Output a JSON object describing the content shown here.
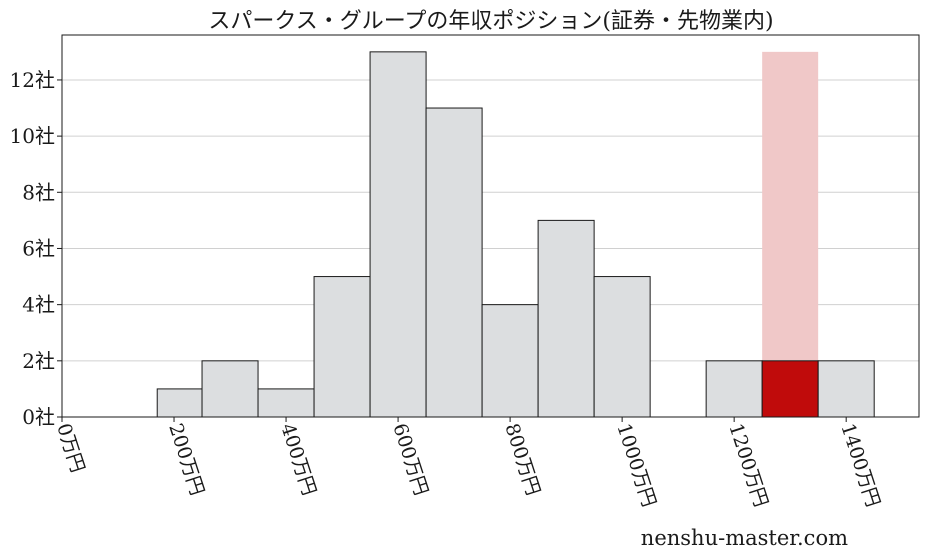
{
  "chart_data": {
    "type": "bar",
    "title": "スパークス・グループの年収ポジション(証券・先物業内)",
    "xlabel": "",
    "ylabel": "",
    "bin_edges_man_yen": [
      0,
      50,
      100,
      150,
      200,
      250,
      300,
      350,
      400,
      450,
      500,
      550,
      600,
      650,
      700,
      750,
      800,
      850,
      900,
      950,
      1000,
      1050,
      1100,
      1150,
      1200,
      1250,
      1300,
      1350,
      1400,
      1450
    ],
    "bars": [
      {
        "x_start": 170,
        "x_end": 250,
        "value": 1
      },
      {
        "x_start": 250,
        "x_end": 350,
        "value": 2
      },
      {
        "x_start": 350,
        "x_end": 450,
        "value": 1
      },
      {
        "x_start": 450,
        "x_end": 550,
        "value": 5
      },
      {
        "x_start": 550,
        "x_end": 650,
        "value": 13
      },
      {
        "x_start": 650,
        "x_end": 750,
        "value": 11
      },
      {
        "x_start": 750,
        "x_end": 850,
        "value": 4
      },
      {
        "x_start": 850,
        "x_end": 950,
        "value": 7
      },
      {
        "x_start": 950,
        "x_end": 1050,
        "value": 5
      },
      {
        "x_start": 1150,
        "x_end": 1250,
        "value": 2
      },
      {
        "x_start": 1250,
        "x_end": 1350,
        "value": 2,
        "highlight": true
      },
      {
        "x_start": 1350,
        "x_end": 1450,
        "value": 2
      }
    ],
    "highlight_band": {
      "x_start": 1250,
      "x_end": 1350,
      "value": 13
    },
    "xlim": [
      0,
      1530
    ],
    "ylim": [
      0,
      13.6
    ],
    "x_ticks": [
      {
        "value": 0,
        "label": "0万円"
      },
      {
        "value": 200,
        "label": "200万円"
      },
      {
        "value": 400,
        "label": "400万円"
      },
      {
        "value": 600,
        "label": "600万円"
      },
      {
        "value": 800,
        "label": "800万円"
      },
      {
        "value": 1000,
        "label": "1000万円"
      },
      {
        "value": 1200,
        "label": "1200万円"
      },
      {
        "value": 1400,
        "label": "1400万円"
      }
    ],
    "y_ticks": [
      {
        "value": 0,
        "label": "0社"
      },
      {
        "value": 2,
        "label": "2社"
      },
      {
        "value": 4,
        "label": "4社"
      },
      {
        "value": 6,
        "label": "6社"
      },
      {
        "value": 8,
        "label": "8社"
      },
      {
        "value": 10,
        "label": "10社"
      },
      {
        "value": 12,
        "label": "12社"
      }
    ],
    "grid": "horizontal",
    "legend": "none",
    "colors": {
      "bar_fill": "#dcdee0",
      "bar_stroke": "#1a1a1a",
      "highlight_fill": "#c00b0b",
      "band_fill": "#f0c8c8",
      "grid": "#d0d0d0"
    }
  },
  "watermark": "nenshu-master.com"
}
